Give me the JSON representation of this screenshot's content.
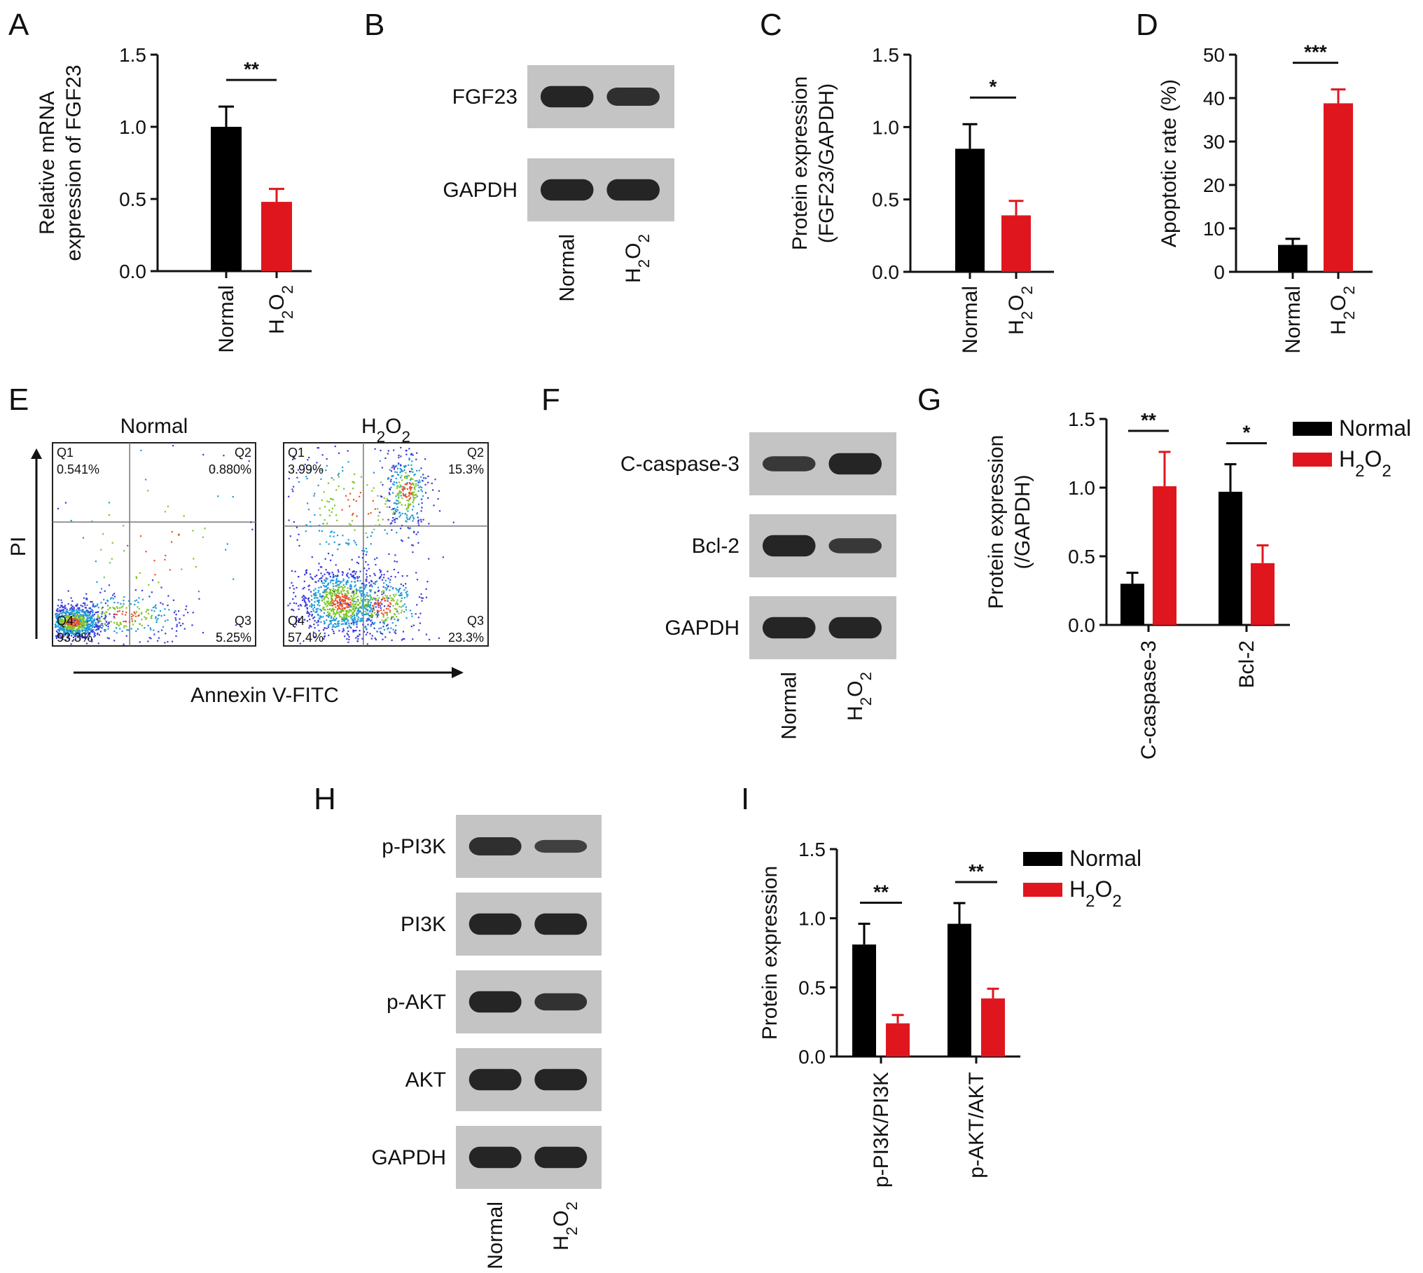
{
  "colors": {
    "normal": "#000000",
    "h2o2": "#e0161f",
    "axis": "#111111"
  },
  "panels": {
    "A": "A",
    "B": "B",
    "C": "C",
    "D": "D",
    "E": "E",
    "F": "F",
    "G": "G",
    "H": "H",
    "I": "I"
  },
  "groups": {
    "normal": "Normal",
    "h2o2": "H2O2"
  },
  "chart_data": [
    {
      "panel": "A",
      "type": "bar",
      "ylabel": [
        "Relative mRNA",
        "expression of FGF23"
      ],
      "categories": [
        "Normal",
        "H2O2"
      ],
      "values": [
        1.0,
        0.48
      ],
      "errors": [
        0.14,
        0.09
      ],
      "ylim": [
        0,
        1.5
      ],
      "yticks": [
        "0.0",
        "0.5",
        "1.0",
        "1.5"
      ],
      "significance": "**"
    },
    {
      "panel": "C",
      "type": "bar",
      "ylabel": [
        "Protein expression",
        "(FGF23/GAPDH)"
      ],
      "categories": [
        "Normal",
        "H2O2"
      ],
      "values": [
        0.85,
        0.39
      ],
      "errors": [
        0.17,
        0.1
      ],
      "ylim": [
        0,
        1.5
      ],
      "yticks": [
        "0.0",
        "0.5",
        "1.0",
        "1.5"
      ],
      "significance": "*"
    },
    {
      "panel": "D",
      "type": "bar",
      "ylabel": [
        "Apoptotic rate (%)"
      ],
      "categories": [
        "Normal",
        "H2O2"
      ],
      "values": [
        6.2,
        38.8
      ],
      "errors": [
        1.4,
        3.2
      ],
      "ylim": [
        0,
        50
      ],
      "yticks": [
        "0",
        "10",
        "20",
        "30",
        "40",
        "50"
      ],
      "significance": "***"
    },
    {
      "panel": "G",
      "type": "bar",
      "ylabel": [
        "Protein expression",
        "(/GAPDH)"
      ],
      "categories": [
        "C-caspase-3",
        "Bcl-2"
      ],
      "series": [
        {
          "name": "Normal",
          "values": [
            0.3,
            0.97
          ],
          "errors": [
            0.08,
            0.2
          ]
        },
        {
          "name": "H2O2",
          "values": [
            1.01,
            0.45
          ],
          "errors": [
            0.25,
            0.13
          ]
        }
      ],
      "ylim": [
        0,
        1.5
      ],
      "yticks": [
        "0.0",
        "0.5",
        "1.0",
        "1.5"
      ],
      "significance": [
        "**",
        "*"
      ],
      "legend": "top-right"
    },
    {
      "panel": "I",
      "type": "bar",
      "ylabel": [
        "Protein expression"
      ],
      "categories": [
        "p-PI3K/PI3K",
        "p-AKT/AKT"
      ],
      "series": [
        {
          "name": "Normal",
          "values": [
            0.81,
            0.96
          ],
          "errors": [
            0.15,
            0.15
          ]
        },
        {
          "name": "H2O2",
          "values": [
            0.24,
            0.42
          ],
          "errors": [
            0.06,
            0.07
          ]
        }
      ],
      "ylim": [
        0,
        1.5
      ],
      "yticks": [
        "0.0",
        "0.5",
        "1.0",
        "1.5"
      ],
      "significance": [
        "**",
        "**"
      ],
      "legend": "top-right"
    }
  ],
  "blots": {
    "B": [
      "FGF23",
      "GAPDH"
    ],
    "F": [
      "C-caspase-3",
      "Bcl-2",
      "GAPDH"
    ],
    "H": [
      "p-PI3K",
      "PI3K",
      "p-AKT",
      "AKT",
      "GAPDH"
    ]
  },
  "flow": {
    "xlabel": "Annexin V-FITC",
    "ylabel": "PI",
    "plots": [
      {
        "title": "Normal",
        "q1": "0.541%",
        "q2": "0.880%",
        "q3": "5.25%",
        "q4": "93.3%"
      },
      {
        "title": "H2O2",
        "q1": "3.99%",
        "q2": "15.3%",
        "q3": "23.3%",
        "q4": "57.4%"
      }
    ],
    "quadrants": [
      "Q1",
      "Q2",
      "Q3",
      "Q4"
    ]
  }
}
